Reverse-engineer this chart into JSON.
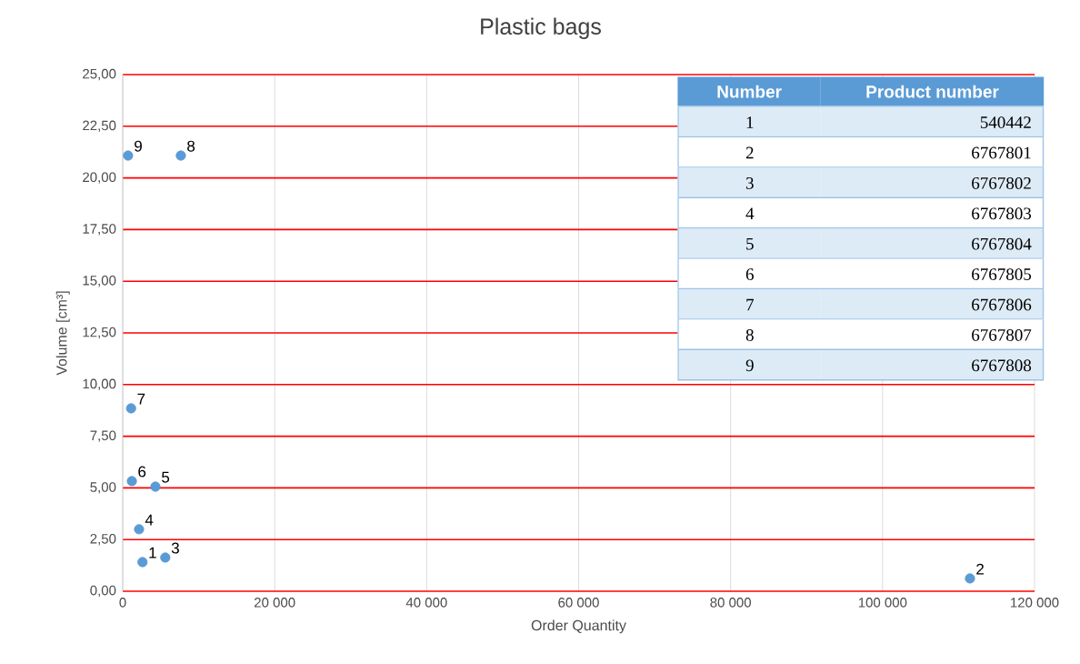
{
  "chart_data": {
    "type": "scatter",
    "title": "Plastic bags",
    "xlabel": "Order Quantity",
    "ylabel": "Volume [cm³]",
    "x": [
      2600,
      111500,
      5600,
      2150,
      4300,
      1200,
      1100,
      7650,
      700
    ],
    "values": [
      1.41,
      0.62,
      1.63,
      3.0,
      5.06,
      5.33,
      8.85,
      21.08,
      21.08
    ],
    "color": "#5b9bd5",
    "marker": "circle",
    "grid": true,
    "xlim": [
      0,
      120000
    ],
    "ylim": [
      0,
      25
    ],
    "xticks": [
      {
        "value": 0,
        "label": "0"
      },
      {
        "value": 20000,
        "label": "20 000"
      },
      {
        "value": 40000,
        "label": "40 000"
      },
      {
        "value": 60000,
        "label": "60 000"
      },
      {
        "value": 80000,
        "label": "80 000"
      },
      {
        "value": 100000,
        "label": "100 000"
      },
      {
        "value": 120000,
        "label": "120 000"
      }
    ],
    "yticks": [
      {
        "value": 0,
        "label": "0,00"
      },
      {
        "value": 2.5,
        "label": "2,50"
      },
      {
        "value": 5,
        "label": "5,00"
      },
      {
        "value": 7.5,
        "label": "7,50"
      },
      {
        "value": 10,
        "label": "10,00"
      },
      {
        "value": 12.5,
        "label": "12,50"
      },
      {
        "value": 15,
        "label": "15,00"
      },
      {
        "value": 17.5,
        "label": "17,50"
      },
      {
        "value": 20,
        "label": "20,00"
      },
      {
        "value": 22.5,
        "label": "22,50"
      },
      {
        "value": 25,
        "label": "25,00"
      }
    ],
    "annotations": [
      "Number",
      "Product number",
      "1",
      "540442",
      "2",
      "6767801",
      "3",
      "6767802",
      "4",
      "6767803",
      "5",
      "6767804",
      "6",
      "6767805",
      "7",
      "6767806",
      "8",
      "6767807",
      "9",
      "6767808",
      {
        "text": "1",
        "x": 2600,
        "y": 1.41
      },
      {
        "text": "2",
        "x": 111500,
        "y": 0.62
      },
      {
        "text": "3",
        "x": 5600,
        "y": 1.63
      },
      {
        "text": "4",
        "x": 2150,
        "y": 3.0
      },
      {
        "text": "5",
        "x": 4300,
        "y": 5.06
      },
      {
        "text": "6",
        "x": 1200,
        "y": 5.33
      },
      {
        "text": "7",
        "x": 1100,
        "y": 8.85
      },
      {
        "text": "8",
        "x": 7650,
        "y": 21.08
      },
      {
        "text": "9",
        "x": 700,
        "y": 21.08
      }
    ]
  }
}
